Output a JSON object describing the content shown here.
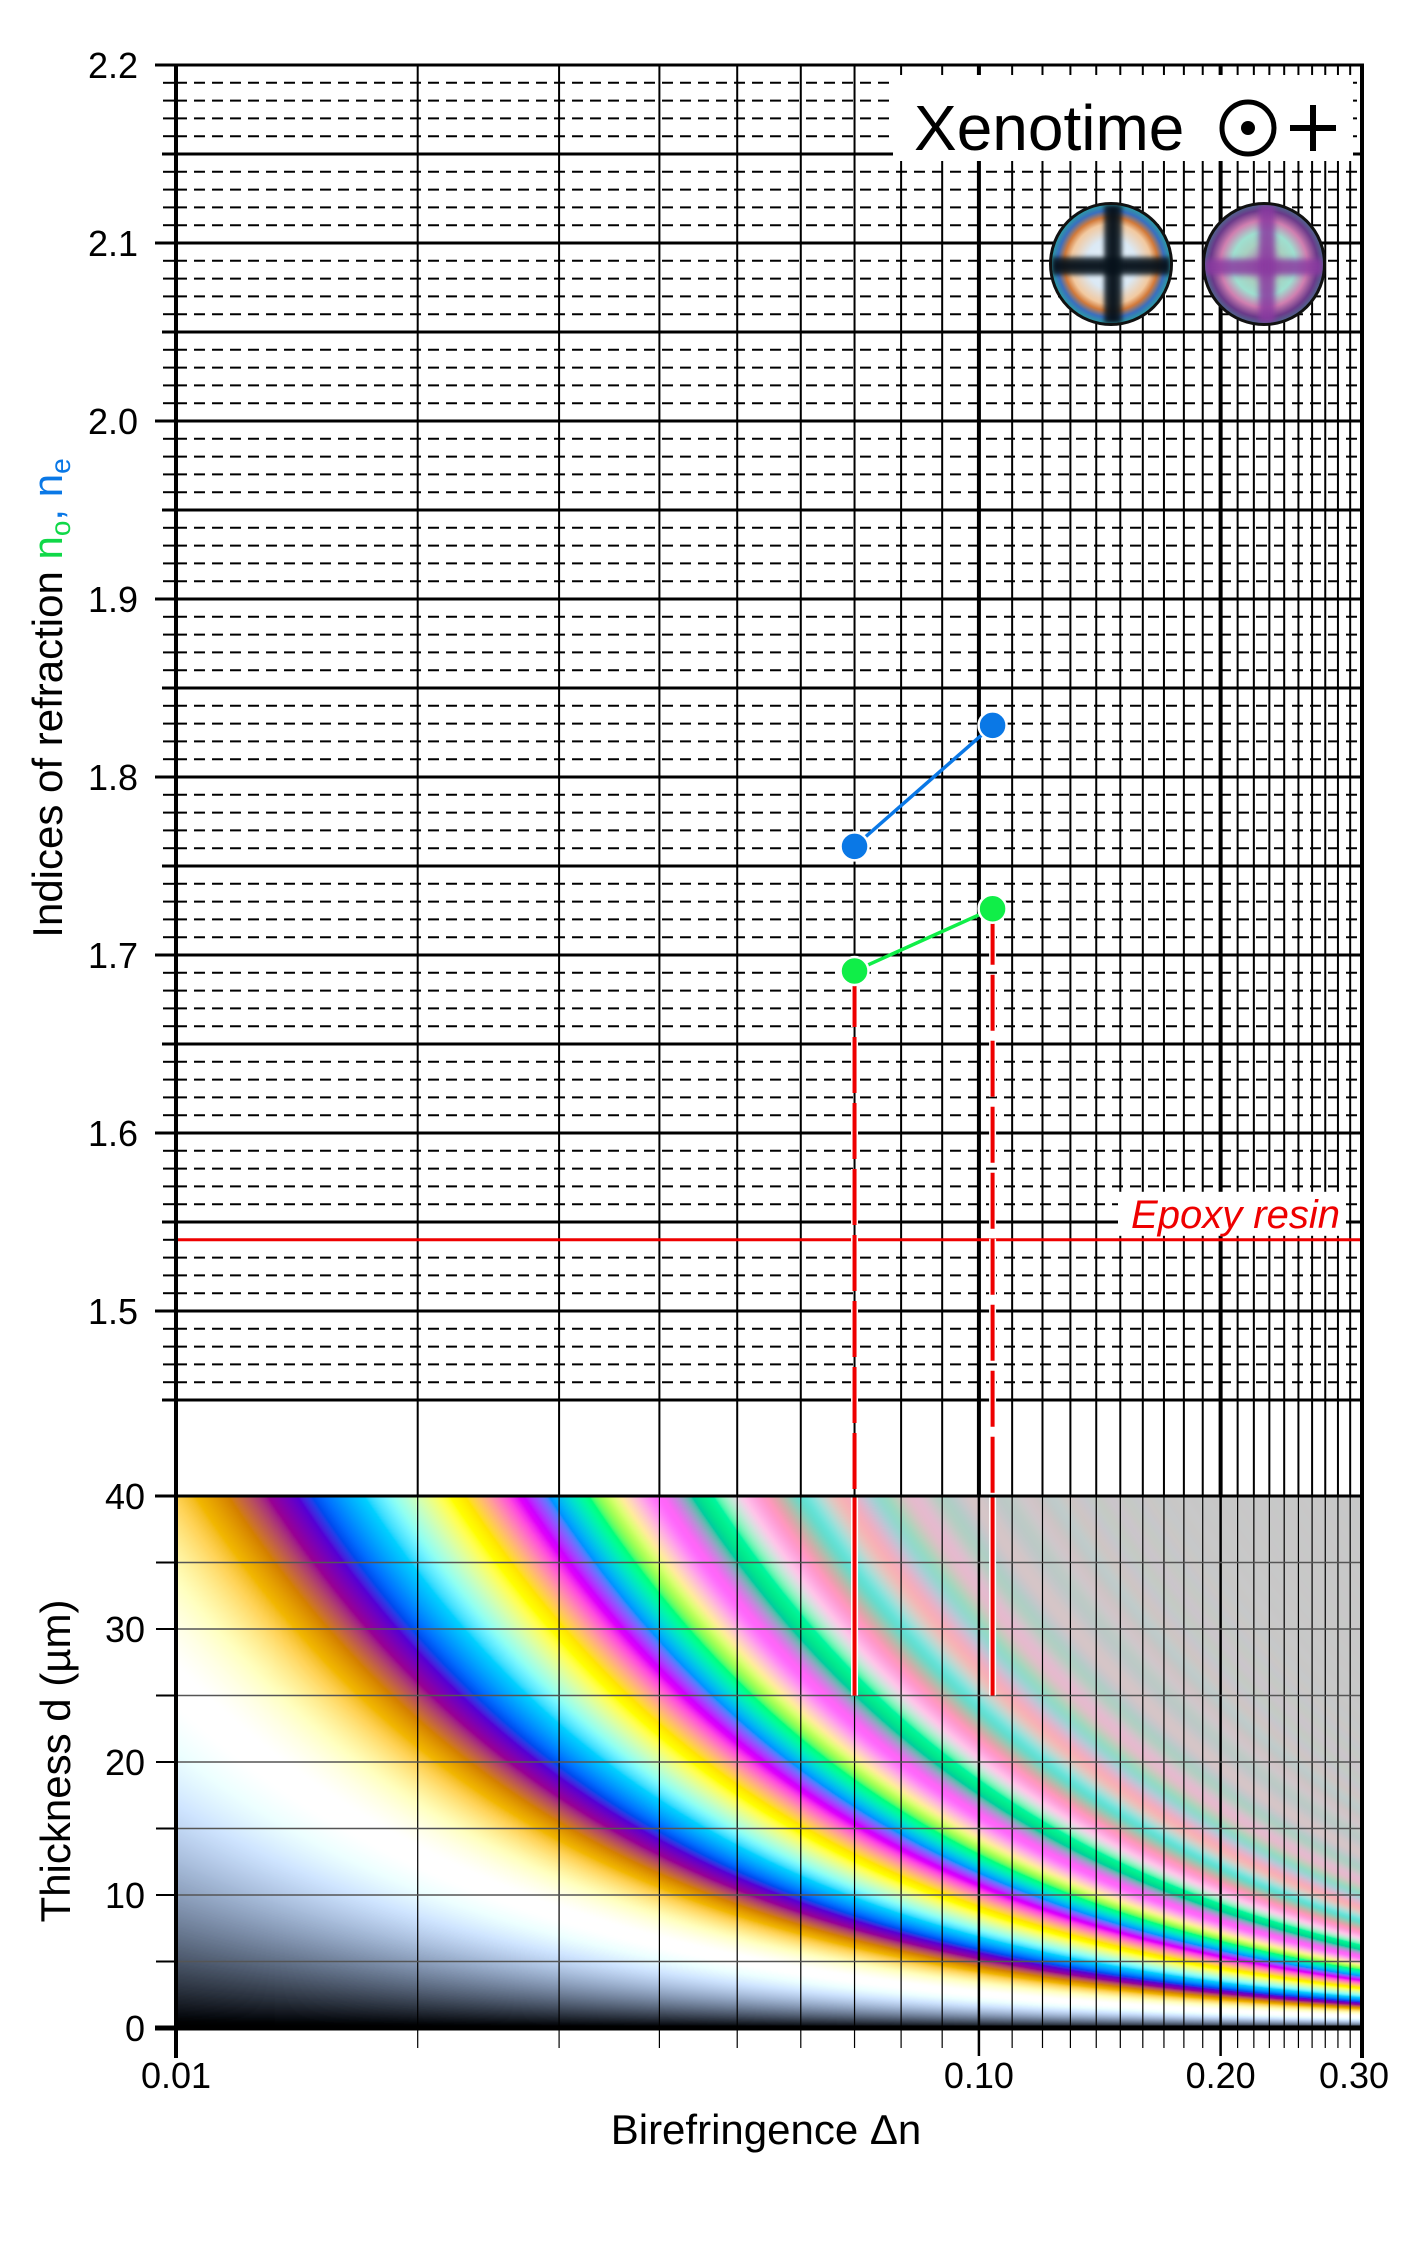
{
  "chart_data": {
    "type": "scatter",
    "title": "Xenotime",
    "title_symbol_optic_axis": "⊙",
    "title_symbol_sign": "+",
    "x_axis": {
      "label": "Birefringence  Δn",
      "scale": "log",
      "range": [
        0.01,
        0.3
      ],
      "ticks": [
        {
          "value": 0.01,
          "label": "0.01"
        },
        {
          "value": 0.1,
          "label": "0.10"
        },
        {
          "value": 0.2,
          "label": "0.20"
        },
        {
          "value": 0.3,
          "label": "0.30"
        }
      ]
    },
    "y_axis_upper": {
      "label": "Indices of refraction",
      "label_no": "n",
      "label_no_sub": "o",
      "label_sep": ", ",
      "label_ne": "n",
      "label_ne_sub": "e",
      "range": [
        1.45,
        2.2
      ],
      "ticks": [
        {
          "value": 1.5,
          "label": "1.5"
        },
        {
          "value": 1.6,
          "label": "1.6"
        },
        {
          "value": 1.7,
          "label": "1.7"
        },
        {
          "value": 1.8,
          "label": "1.8"
        },
        {
          "value": 1.9,
          "label": "1.9"
        },
        {
          "value": 2.0,
          "label": "2.0"
        },
        {
          "value": 2.1,
          "label": "2.1"
        },
        {
          "value": 2.2,
          "label": "2.2"
        }
      ]
    },
    "y_axis_lower": {
      "label": "Thickness  d  (µm)",
      "range": [
        0,
        40
      ],
      "ticks": [
        {
          "value": 0,
          "label": "0"
        },
        {
          "value": 10,
          "label": "10"
        },
        {
          "value": 20,
          "label": "20"
        },
        {
          "value": 30,
          "label": "30"
        },
        {
          "value": 40,
          "label": "40"
        }
      ]
    },
    "grid": true,
    "series": [
      {
        "name": "n_e",
        "color": "#0a78e6",
        "points": [
          [
            0.07,
            1.761
          ],
          [
            0.104,
            1.829
          ]
        ]
      },
      {
        "name": "n_o",
        "color": "#10ee48",
        "points": [
          [
            0.07,
            1.691
          ],
          [
            0.104,
            1.726
          ]
        ]
      }
    ],
    "reference_lines": [
      {
        "label": "Epoxy resin",
        "n": 1.54,
        "color": "#ee0000"
      }
    ],
    "thickness_markers": [
      {
        "dn": 0.07,
        "from_n": 1.691,
        "to_d": 25,
        "color": "#ee0000"
      },
      {
        "dn": 0.104,
        "from_n": 1.726,
        "to_d": 25,
        "color": "#ee0000"
      }
    ],
    "background": "Michel-Lévy interference colour chart (retardation = d · Δn)"
  }
}
